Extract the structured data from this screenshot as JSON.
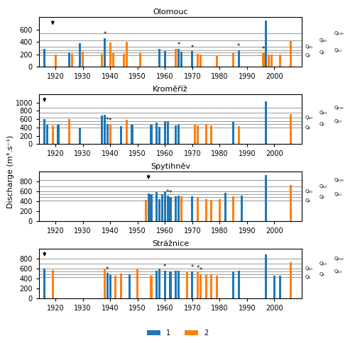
{
  "ylabel": "Discharge (m³.s⁻¹)",
  "legend": "lower center",
  "chart_data": [
    {
      "type": "bar",
      "title": "Olomouc",
      "xlim": [
        1914,
        2010
      ],
      "xticks": [
        1920,
        1930,
        1940,
        1950,
        1960,
        1970,
        1980,
        1990,
        2000
      ],
      "ylim": [
        0,
        800
      ],
      "yticks": [
        0,
        200,
        400,
        600
      ],
      "series": [
        {
          "name": "1",
          "x": [
            1916,
            1925,
            1929,
            1938,
            1958,
            1960,
            1965,
            1966,
            1970,
            1987,
            1997
          ],
          "values": [
            290,
            235,
            380,
            460,
            285,
            258,
            290,
            248,
            250,
            265,
            750
          ]
        },
        {
          "name": "2",
          "x": [
            1920,
            1926,
            1930,
            1937,
            1940,
            1941,
            1945,
            1946,
            1951,
            1964,
            1972,
            1973,
            1979,
            1985,
            1996,
            1998,
            1999,
            2002,
            2006
          ],
          "values": [
            200,
            215,
            248,
            215,
            395,
            220,
            215,
            400,
            225,
            285,
            215,
            200,
            190,
            220,
            228,
            200,
            195,
            200,
            415
          ]
        }
      ],
      "reference_lines": [
        {
          "y": 185,
          "label": "Q₂"
        },
        {
          "y": 235,
          "label": "Q₅"
        },
        {
          "y": 270,
          "label": "Q₁₀"
        },
        {
          "y": 325,
          "label": "Q₂₀"
        },
        {
          "y": 430,
          "label": "Q₅₀"
        },
        {
          "y": 540,
          "label": "Q₁₀₀"
        }
      ],
      "annotations": [
        {
          "x": 1938,
          "y": 460,
          "text": "*"
        },
        {
          "x": 1965,
          "y": 290,
          "text": "*"
        },
        {
          "x": 1970,
          "y": 250,
          "text": "*"
        },
        {
          "x": 1987,
          "y": 265,
          "text": "*"
        },
        {
          "x": 1996,
          "y": 228,
          "text": "*"
        }
      ],
      "arrow_x": 1919
    },
    {
      "type": "bar",
      "title": "Kroměříž",
      "xlim": [
        1914,
        2010
      ],
      "xticks": [
        1920,
        1930,
        1940,
        1950,
        1960,
        1970,
        1980,
        1990,
        2000
      ],
      "ylim": [
        0,
        1200
      ],
      "yticks": [
        0,
        200,
        400,
        600,
        800,
        1000
      ],
      "series": [
        {
          "name": "1",
          "x": [
            1916,
            1917,
            1921,
            1929,
            1937,
            1938,
            1939,
            1944,
            1948,
            1955,
            1957,
            1958,
            1960,
            1961,
            1964,
            1965,
            1985,
            1997
          ],
          "values": [
            600,
            470,
            470,
            400,
            690,
            700,
            490,
            430,
            465,
            470,
            510,
            415,
            550,
            560,
            450,
            470,
            540,
            1030
          ]
        },
        {
          "name": "2",
          "x": [
            1919,
            1925,
            1940,
            1946,
            1971,
            1972,
            1975,
            1977,
            1987,
            2006
          ],
          "values": [
            450,
            600,
            480,
            580,
            490,
            450,
            460,
            450,
            440,
            720
          ]
        }
      ],
      "reference_lines": [
        {
          "y": 390,
          "label": "Q₂"
        },
        {
          "y": 490,
          "label": "Q₅"
        },
        {
          "y": 560,
          "label": "Q₁₀"
        },
        {
          "y": 630,
          "label": "Q₂₀"
        },
        {
          "y": 750,
          "label": "Q₅₀"
        },
        {
          "y": 870,
          "label": "Q₁₀₀"
        }
      ],
      "annotations": [
        {
          "x": 1939,
          "y": 490,
          "text": "*"
        },
        {
          "x": 1940,
          "y": 480,
          "text": "*"
        }
      ],
      "arrow_x": 1916
    },
    {
      "type": "bar",
      "title": "Spytihněv",
      "xlim": [
        1914,
        2010
      ],
      "xticks": [
        1920,
        1930,
        1940,
        1950,
        1960,
        1970,
        1980,
        1990,
        2000
      ],
      "ylim": [
        0,
        1000
      ],
      "yticks": [
        0,
        200,
        400,
        600,
        800
      ],
      "series": [
        {
          "name": "1",
          "x": [
            1954,
            1955,
            1957,
            1958,
            1959,
            1960,
            1961,
            1962,
            1964,
            1965,
            1970,
            1982,
            1988,
            1997
          ],
          "values": [
            560,
            540,
            590,
            440,
            550,
            600,
            510,
            490,
            500,
            510,
            500,
            570,
            510,
            930
          ]
        },
        {
          "name": "2",
          "x": [
            1953,
            1966,
            1972,
            1975,
            1977,
            1980,
            1985,
            2006
          ],
          "values": [
            430,
            500,
            490,
            445,
            430,
            440,
            500,
            730
          ]
        }
      ],
      "reference_lines": [
        {
          "y": 420,
          "label": "Q₂"
        },
        {
          "y": 490,
          "label": "Q₅"
        },
        {
          "y": 540,
          "label": "Q₁₀"
        },
        {
          "y": 600,
          "label": "Q₂₀"
        },
        {
          "y": 700,
          "label": "Q₅₀"
        },
        {
          "y": 830,
          "label": "Q₁₀₀"
        }
      ],
      "annotations": [
        {
          "x": 1961,
          "y": 510,
          "text": "*"
        },
        {
          "x": 1962,
          "y": 490,
          "text": "*"
        }
      ],
      "arrow_x": 1954
    },
    {
      "type": "bar",
      "title": "Strážnice",
      "xlim": [
        1914,
        2010
      ],
      "xticks": [
        1920,
        1930,
        1940,
        1950,
        1960,
        1970,
        1980,
        1990,
        2000
      ],
      "ylim": [
        0,
        1000
      ],
      "yticks": [
        0,
        200,
        400,
        600,
        800
      ],
      "series": [
        {
          "name": "1",
          "x": [
            1916,
            1939,
            1940,
            1947,
            1957,
            1958,
            1960,
            1962,
            1964,
            1965,
            1970,
            1985,
            1987,
            1997,
            2000,
            2002
          ],
          "values": [
            600,
            510,
            465,
            490,
            560,
            605,
            555,
            545,
            555,
            550,
            545,
            540,
            560,
            880,
            455,
            460
          ]
        },
        {
          "name": "2",
          "x": [
            1919,
            1938,
            1942,
            1944,
            1950,
            1955,
            1968,
            1972,
            1973,
            1975,
            1977,
            1979,
            2006
          ],
          "values": [
            575,
            600,
            460,
            500,
            595,
            455,
            545,
            530,
            490,
            475,
            490,
            450,
            730
          ]
        }
      ],
      "reference_lines": [
        {
          "y": 430,
          "label": "Q₂"
        },
        {
          "y": 490,
          "label": "Q₅"
        },
        {
          "y": 540,
          "label": "Q₁₀"
        },
        {
          "y": 600,
          "label": "Q₂₀"
        },
        {
          "y": 700,
          "label": "Q₅₀"
        },
        {
          "y": 800,
          "label": "Q₁₀₀"
        }
      ],
      "annotations": [
        {
          "x": 1939,
          "y": 510,
          "text": "*"
        },
        {
          "x": 1960,
          "y": 555,
          "text": "*"
        },
        {
          "x": 1970,
          "y": 545,
          "text": "*"
        },
        {
          "x": 1972,
          "y": 530,
          "text": "*"
        },
        {
          "x": 1973,
          "y": 490,
          "text": "*"
        }
      ],
      "arrow_x": 1916
    }
  ]
}
